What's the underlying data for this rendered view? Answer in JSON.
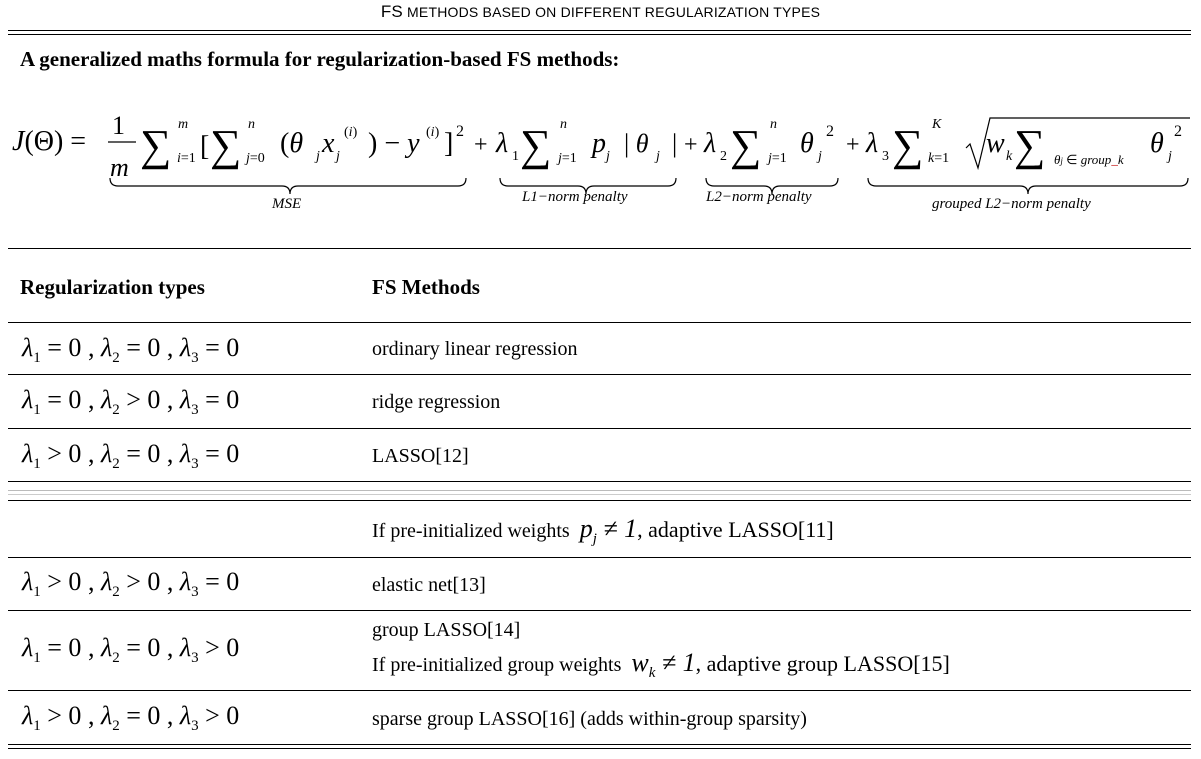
{
  "caption": {
    "first": "FS",
    "rest": " METHODS BASED ON DIFFERENT REGULARIZATION TYPES"
  },
  "heading": "A generalized maths formula for regularization-based FS methods:",
  "formula": {
    "lhs": "J(Θ) =",
    "term_labels": {
      "mse": "MSE",
      "l1": "L1−norm penalty",
      "l2": "L2−norm penalty",
      "group_l2": "grouped L2−norm penalty"
    }
  },
  "table": {
    "headers": {
      "types": "Regularization types",
      "methods": "FS Methods"
    },
    "rows": [
      {
        "cond": [
          "= 0",
          "= 0",
          "= 0"
        ],
        "method": "ordinary linear regression"
      },
      {
        "cond": [
          "= 0",
          "> 0",
          "= 0"
        ],
        "method": "ridge regression"
      },
      {
        "cond": [
          "> 0",
          "= 0",
          "= 0"
        ],
        "method": "LASSO[12]"
      },
      {
        "cond": null,
        "method_prefix": "If pre-initialized weights",
        "method_suffix": ", adaptive LASSO[11]"
      },
      {
        "cond": [
          "> 0",
          "> 0",
          "= 0"
        ],
        "method": "elastic net[13]"
      },
      {
        "cond": [
          "= 0",
          "= 0",
          "> 0"
        ],
        "method": "group LASSO[14]",
        "method_line2_prefix": "If pre-initialized group weights",
        "method_line2_suffix": ", adaptive group LASSO[15]"
      },
      {
        "cond": [
          "> 0",
          "= 0",
          "> 0"
        ],
        "method": "sparse group LASSO[16] (adds within-group sparsity)"
      }
    ]
  }
}
